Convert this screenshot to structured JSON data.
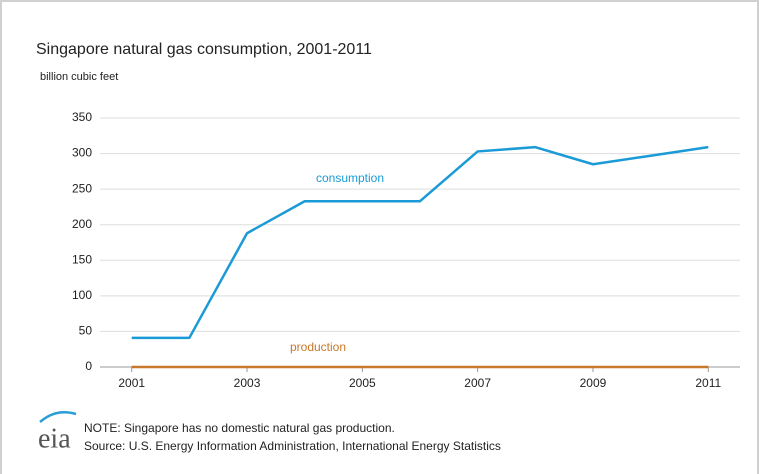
{
  "chart_data": {
    "type": "line",
    "title": "Singapore natural gas consumption, 2001-2011",
    "subtitle": "billion cubic feet",
    "x": [
      2001,
      2002,
      2003,
      2004,
      2005,
      2006,
      2007,
      2008,
      2009,
      2010,
      2011
    ],
    "series": [
      {
        "name": "consumption",
        "color": "#1a9ad6",
        "values": [
          41,
          41,
          188,
          233,
          233,
          233,
          303,
          309,
          285,
          297,
          309
        ]
      },
      {
        "name": "production",
        "color": "#c8782a",
        "values": [
          0,
          0,
          0,
          0,
          0,
          0,
          0,
          0,
          0,
          0,
          0
        ]
      }
    ],
    "xlim": [
      2000.45,
      2011.55
    ],
    "xticks": [
      2001,
      2003,
      2005,
      2007,
      2009,
      2011
    ],
    "ylim": [
      0,
      350
    ],
    "yticks": [
      0,
      50,
      100,
      150,
      200,
      250,
      300,
      350
    ],
    "grid": true,
    "note": "NOTE: Singapore has no domestic natural gas production.",
    "source": "Source: U.S. Energy Information Administration, International Energy Statistics",
    "logo": "eia"
  }
}
